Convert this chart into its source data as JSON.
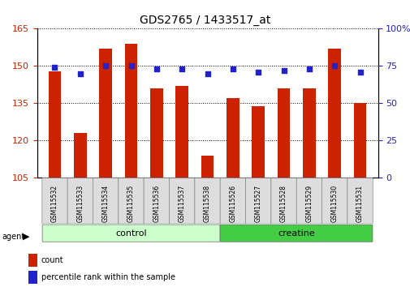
{
  "title": "GDS2765 / 1433517_at",
  "samples": [
    "GSM115532",
    "GSM115533",
    "GSM115534",
    "GSM115535",
    "GSM115536",
    "GSM115537",
    "GSM115538",
    "GSM115526",
    "GSM115527",
    "GSM115528",
    "GSM115529",
    "GSM115530",
    "GSM115531"
  ],
  "counts": [
    148,
    123,
    157,
    159,
    141,
    142,
    114,
    137,
    134,
    141,
    141,
    157,
    135
  ],
  "percentiles": [
    74,
    70,
    75,
    75,
    73,
    73,
    70,
    73,
    71,
    72,
    73,
    75,
    71
  ],
  "groups": [
    "control",
    "control",
    "control",
    "control",
    "control",
    "control",
    "control",
    "creatine",
    "creatine",
    "creatine",
    "creatine",
    "creatine",
    "creatine"
  ],
  "ylim_left": [
    105,
    165
  ],
  "ylim_right": [
    0,
    100
  ],
  "yticks_left": [
    105,
    120,
    135,
    150,
    165
  ],
  "yticks_right": [
    0,
    25,
    50,
    75,
    100
  ],
  "yticks_right_labels": [
    "0",
    "25",
    "50",
    "75",
    "100%"
  ],
  "bar_color": "#cc2200",
  "dot_color": "#2222cc",
  "control_color": "#ccffcc",
  "creatine_color": "#44cc44",
  "bg_color": "#ffffff",
  "tick_label_bg": "#dddddd"
}
